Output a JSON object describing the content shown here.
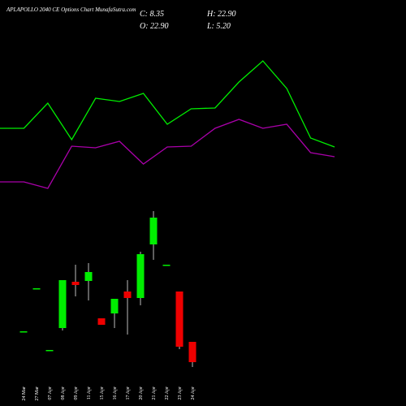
{
  "chart_data": [
    {
      "type": "line",
      "categories": [
        null,
        null,
        null,
        null,
        null,
        null,
        null,
        null,
        null,
        null,
        null,
        null,
        null,
        null,
        null
      ],
      "ylim": [
        0,
        19
      ],
      "series": [
        {
          "color": "#00ee00",
          "values": [
            9.2,
            9.2,
            12.3,
            7.8,
            12.9,
            12.5,
            13.5,
            9.7,
            11.6,
            11.7,
            14.9,
            17.5,
            14.1,
            8.0,
            6.9
          ]
        },
        {
          "color": "#aa00aa",
          "values": [
            2.6,
            2.6,
            1.8,
            7.0,
            6.8,
            7.6,
            4.8,
            6.9,
            7.0,
            9.2,
            10.3,
            9.2,
            9.7,
            6.2,
            5.7
          ]
        }
      ]
    },
    {
      "type": "candlestick",
      "title": "APLAPOLLO 2040 CE Options Chart MunafaSutra.com",
      "summary": [
        "C: 8.35",
        "O: 22.90",
        "H: 22.90",
        "L: 5.20"
      ],
      "categories": [
        "24 Mar",
        "27 Mar",
        "07 Apr",
        "08 Apr",
        "09 Apr",
        "11 Apr",
        "15 Apr",
        "16 Apr",
        "17 Apr",
        "20 Apr",
        "21 Apr",
        "22 Apr",
        "23 Apr",
        "24 Apr"
      ],
      "open": [
        6.2,
        11.5,
        3.9,
        6.6,
        12.3,
        12.4,
        7.8,
        8.4,
        11.1,
        10.3,
        16.9,
        14.4,
        11.1,
        4.9
      ],
      "high": [
        6.2,
        11.5,
        3.9,
        12.5,
        14.4,
        14.6,
        7.8,
        10.2,
        12.5,
        16.0,
        21.0,
        14.4,
        11.1,
        4.9
      ],
      "low": [
        6.2,
        11.5,
        3.9,
        6.3,
        10.5,
        10.0,
        7.0,
        6.6,
        5.8,
        9.4,
        15.0,
        14.4,
        4.0,
        1.8
      ],
      "close": [
        6.2,
        11.5,
        3.9,
        12.5,
        11.9,
        13.5,
        7.0,
        10.2,
        10.3,
        15.7,
        20.2,
        14.4,
        4.3,
        2.4
      ],
      "ylim": [
        0,
        21
      ],
      "up_color": "#00ee00",
      "down_color": "#ee0000"
    }
  ]
}
